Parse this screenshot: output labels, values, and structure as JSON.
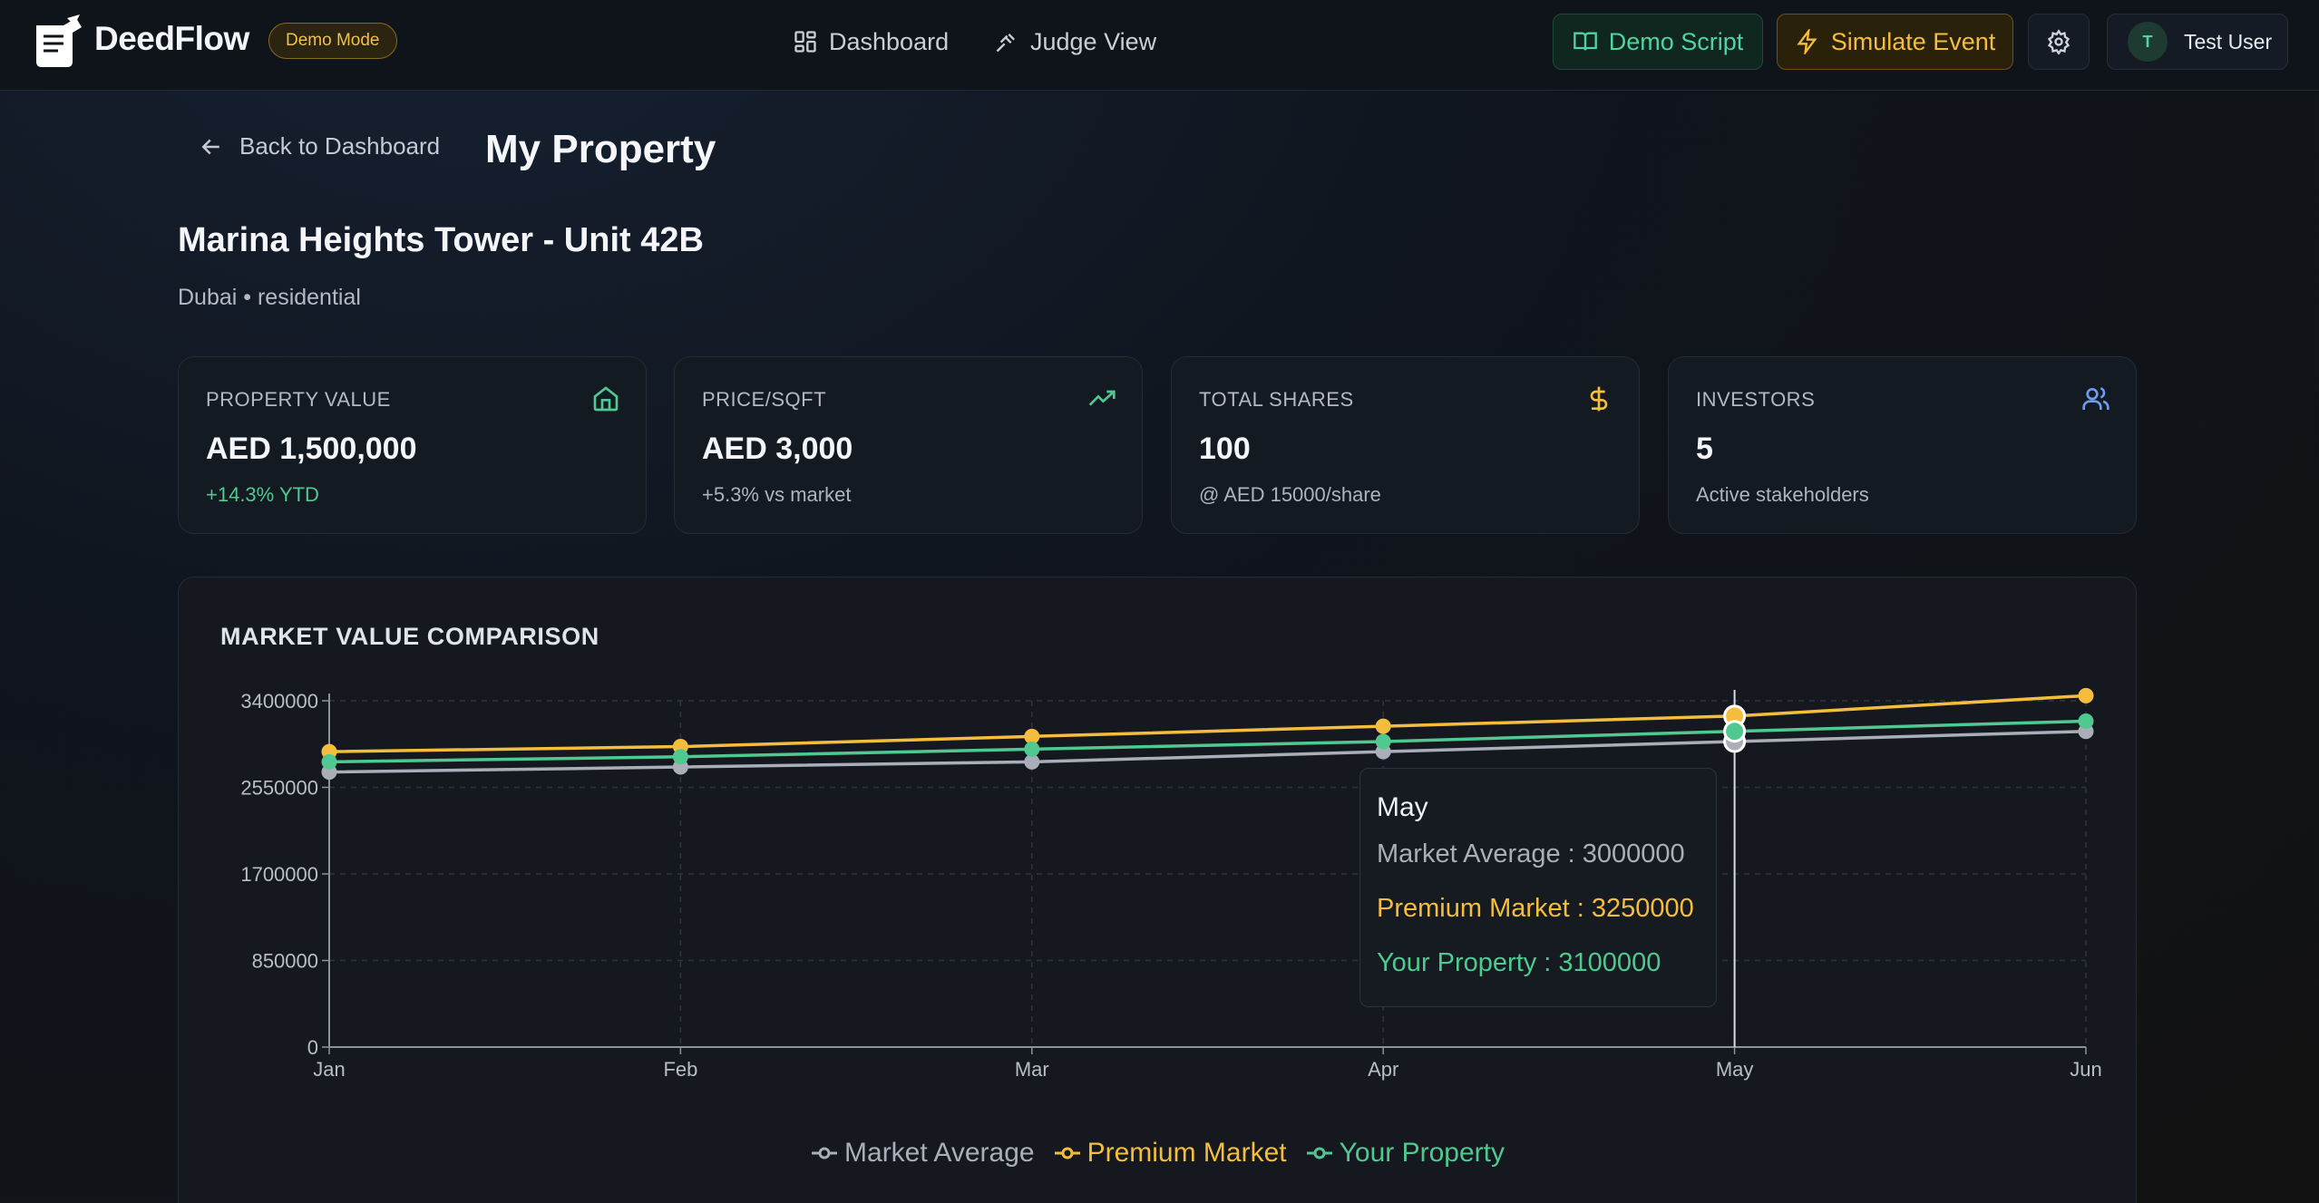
{
  "header": {
    "brand": "DeedFlow",
    "badge": "Demo Mode",
    "nav": [
      {
        "label": "Dashboard",
        "icon": "grid-icon"
      },
      {
        "label": "Judge View",
        "icon": "gavel-icon"
      }
    ],
    "demo_script_label": "Demo Script",
    "simulate_event_label": "Simulate Event",
    "settings_icon": "gear-icon",
    "user": {
      "initial": "T",
      "name": "Test User"
    }
  },
  "page": {
    "back_label": "Back to Dashboard",
    "title": "My Property",
    "property_name": "Marina Heights Tower - Unit 42B",
    "property_sub": "Dubai • residential"
  },
  "cards": [
    {
      "label": "PROPERTY VALUE",
      "value": "AED 1,500,000",
      "sub": "+14.3% YTD",
      "icon": "home-icon",
      "icon_color": "#4fc990"
    },
    {
      "label": "PRICE/SQFT",
      "value": "AED 3,000",
      "sub": "+5.3% vs market",
      "icon": "trending-up-icon",
      "icon_color": "#4fc990"
    },
    {
      "label": "TOTAL SHARES",
      "value": "100",
      "sub": "@ AED 15000/share",
      "icon": "dollar-icon",
      "icon_color": "#f4be3c"
    },
    {
      "label": "INVESTORS",
      "value": "5",
      "sub": "Active stakeholders",
      "icon": "users-icon",
      "icon_color": "#6d9cf0"
    }
  ],
  "chart_title": "MARKET VALUE COMPARISON",
  "tooltip": {
    "title": "May",
    "rows": [
      {
        "text": "Market Average : 3000000",
        "color": "#a9aeb8"
      },
      {
        "text": "Premium Market : 3250000",
        "color": "#f4be3c"
      },
      {
        "text": "Your Property : 3100000",
        "color": "#4fc990"
      }
    ]
  },
  "chart_data": {
    "type": "line",
    "title": "MARKET VALUE COMPARISON",
    "x": [
      "Jan",
      "Feb",
      "Mar",
      "Apr",
      "May",
      "Jun"
    ],
    "ylim": [
      0,
      3400000
    ],
    "yticks": [
      0,
      850000,
      1700000,
      2550000,
      3400000
    ],
    "grid": true,
    "legend": "bottom",
    "active_category": "May",
    "series": [
      {
        "name": "Market Average",
        "color": "#a9aeb8",
        "values": [
          2700000,
          2750000,
          2800000,
          2900000,
          3000000,
          3100000
        ]
      },
      {
        "name": "Premium Market",
        "color": "#f4be3c",
        "values": [
          2900000,
          2950000,
          3050000,
          3150000,
          3250000,
          3450000
        ]
      },
      {
        "name": "Your Property",
        "color": "#4fc990",
        "values": [
          2800000,
          2850000,
          2925000,
          3000000,
          3100000,
          3200000
        ]
      }
    ]
  }
}
